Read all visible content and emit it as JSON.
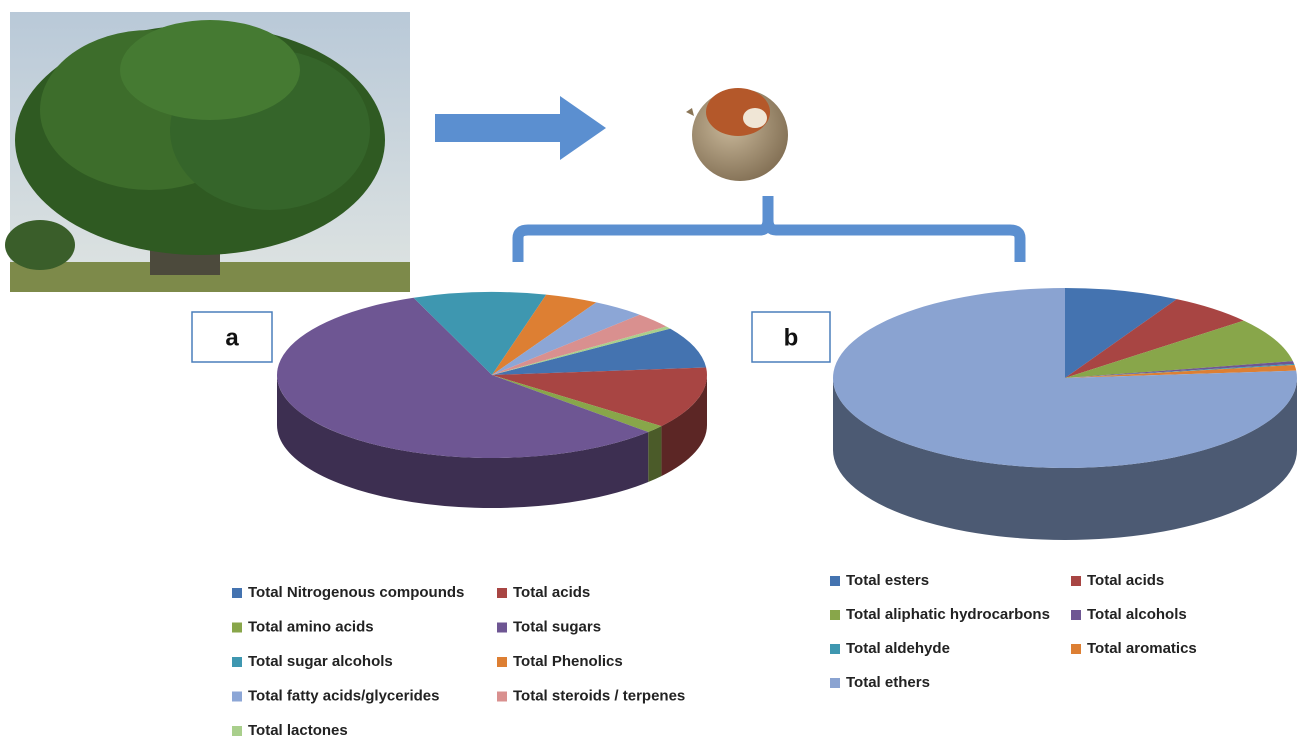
{
  "chart_data": [
    {
      "type": "pie",
      "label": "a",
      "categories": [
        "Total Nitrogenous compounds",
        "Total acids",
        "Total amino acids",
        "Total sugars",
        "Total sugar alcohols",
        "Total Phenolics",
        "Total fatty acids/glycerides",
        "Total steroids / terpenes",
        "Total lactones"
      ],
      "values": [
        8,
        12,
        1.5,
        57,
        10,
        4,
        4,
        3,
        0.5
      ],
      "colors": [
        "#4473b0",
        "#a84543",
        "#88a64a",
        "#6e5693",
        "#3e97b0",
        "#dd7f33",
        "#8ca6d6",
        "#d9908f",
        "#a9cf8c"
      ]
    },
    {
      "type": "pie",
      "label": "b",
      "categories": [
        "Total esters",
        "Total acids",
        "Total aliphatic hydrocarbons",
        "Total alcohols",
        "Total aldehyde",
        "Total aromatics",
        "Total ethers"
      ],
      "values": [
        8,
        6,
        8,
        0.5,
        0.2,
        1,
        76.3
      ],
      "colors": [
        "#4473b0",
        "#a84543",
        "#88a64a",
        "#6e5693",
        "#3e97b0",
        "#dd7f33",
        "#8aa3d1"
      ]
    }
  ]
}
